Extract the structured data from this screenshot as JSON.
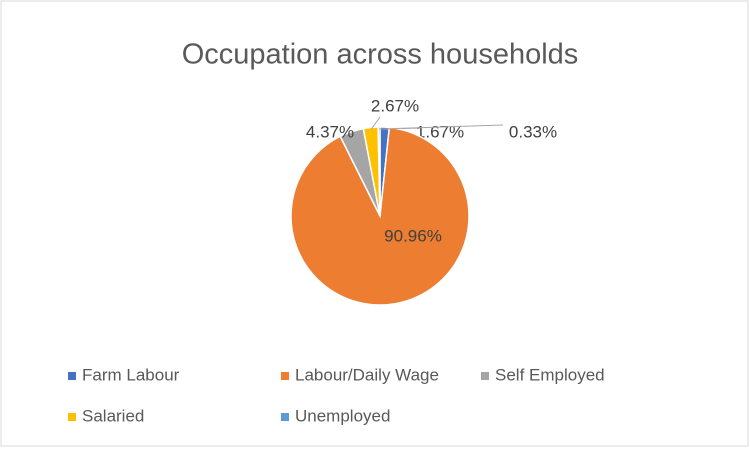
{
  "chart_data": {
    "type": "pie",
    "title": "Occupation across households",
    "categories": [
      "Farm Labour",
      "Labour/Daily Wage",
      "Self Employed",
      "Salaried",
      "Unemployed"
    ],
    "values": [
      1.67,
      90.96,
      4.37,
      2.67,
      0.33
    ],
    "value_labels": [
      "1.67%",
      "90.96%",
      "4.37%",
      "2.67%",
      "0.33%"
    ],
    "colors": [
      "#4472c4",
      "#ed7d31",
      "#a5a5a5",
      "#ffc000",
      "#5b9bd5"
    ],
    "legend": "bottom"
  }
}
